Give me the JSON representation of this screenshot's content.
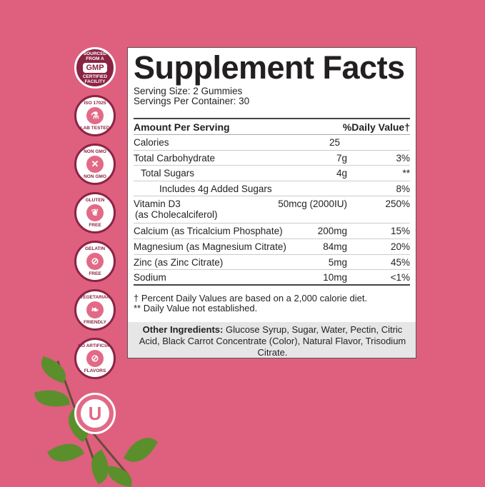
{
  "colors": {
    "background": "#df5f7e",
    "badge": "#8b2443",
    "badge_fill": "#e26a87"
  },
  "badges": [
    {
      "icon": "gmp-icon",
      "top": "SOURCED FROM A",
      "mark": "GMP",
      "bottom": "CERTIFIED FACILITY"
    },
    {
      "icon": "flask-icon",
      "top": "ISO 17025",
      "mark": "⚗",
      "bottom": "LAB TESTED"
    },
    {
      "icon": "dna-crossed-icon",
      "top": "NON GMO",
      "mark": "✕",
      "bottom": "NON GMO"
    },
    {
      "icon": "wheat-icon",
      "top": "GLUTEN",
      "mark": "❦",
      "bottom": "FREE"
    },
    {
      "icon": "gelatin-icon",
      "top": "GELATIN",
      "mark": "⊘",
      "bottom": "FREE"
    },
    {
      "icon": "leaves-icon",
      "top": "VEGETARIAN",
      "mark": "❧",
      "bottom": "FRIENDLY"
    },
    {
      "icon": "dropper-icon",
      "top": "NO ARTIFICIAL",
      "mark": "⊘",
      "bottom": "FLAVORS"
    },
    {
      "icon": "kosher-u-icon",
      "mark": "U"
    }
  ],
  "facts": {
    "title": "Supplement Facts",
    "serving_size": "Serving Size: 2 Gummies",
    "servings_per_container": "Servings Per Container: 30",
    "header_left": "Amount Per Serving",
    "header_right": "%Daily Value†",
    "rows": [
      {
        "name": "Calories",
        "amount": "25",
        "dv": ""
      },
      {
        "name": "Total Carbohydrate",
        "amount": "7g",
        "dv": "3%"
      },
      {
        "name": "Total Sugars",
        "amount": "4g",
        "dv": "**"
      },
      {
        "name": "Includes 4g Added Sugars",
        "amount": "",
        "dv": "8%"
      },
      {
        "name": "Vitamin D3",
        "name2": "(as Cholecalciferol)",
        "amount": "50mcg (2000IU)",
        "dv": "250%"
      },
      {
        "name": "Calcium (as Tricalcium Phosphate)",
        "amount": "200mg",
        "dv": "15%"
      },
      {
        "name": "Magnesium (as Magnesium Citrate)",
        "amount": "84mg",
        "dv": "20%"
      },
      {
        "name": "Zinc (as Zinc Citrate)",
        "amount": "5mg",
        "dv": "45%"
      },
      {
        "name": "Sodium",
        "amount": "10mg",
        "dv": "<1%"
      }
    ],
    "footnote1": "† Percent Daily Values are based on a 2,000 calorie diet.",
    "footnote2": "** Daily Value not established.",
    "ingredients_label": "Other Ingredients:",
    "ingredients": " Glucose Syrup, Sugar, Water, Pectin, Citric Acid, Black Carrot Concentrate (Color), Natural Flavor, Trisodium Citrate."
  }
}
